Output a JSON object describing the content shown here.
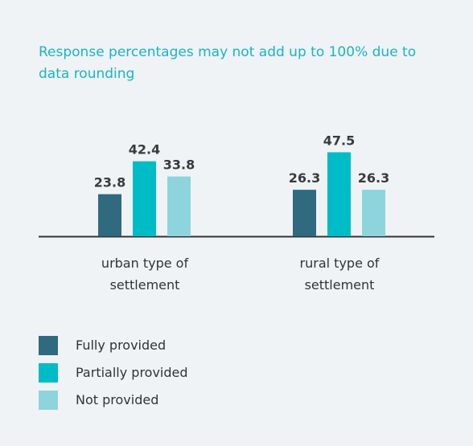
{
  "chart_data": {
    "type": "bar",
    "title": "Response percentages may not add up to 100% due to data rounding",
    "categories": [
      "urban type of settlement",
      "rural type of settlement"
    ],
    "series": [
      {
        "name": "Fully provided",
        "color": "#2f6a7f",
        "values": [
          23.8,
          26.3
        ]
      },
      {
        "name": "Partially provided",
        "color": "#00bcc6",
        "values": [
          42.4,
          47.5
        ]
      },
      {
        "name": "Not provided",
        "color": "#8dd4dc",
        "values": [
          33.8,
          26.3
        ]
      }
    ]
  }
}
